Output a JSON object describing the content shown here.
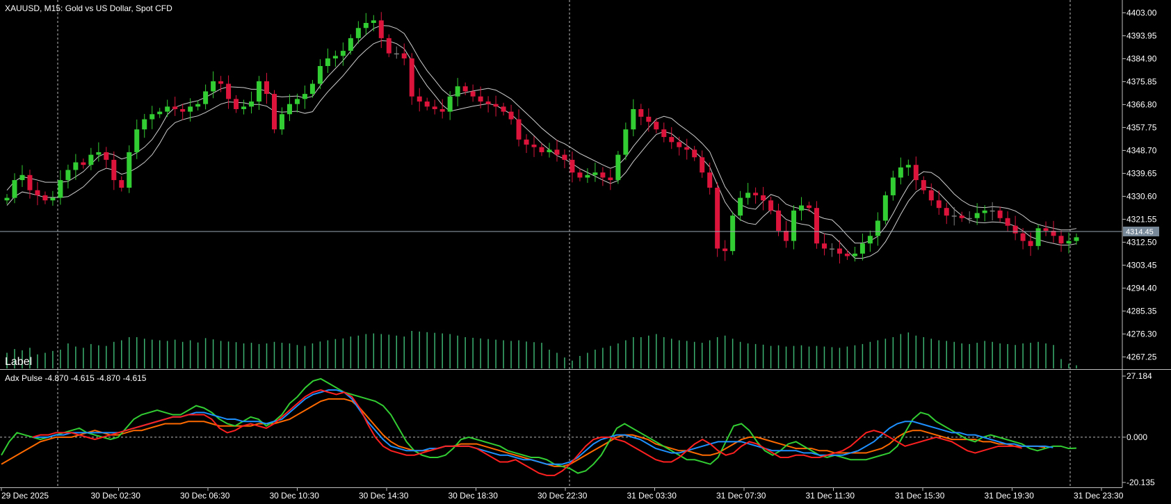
{
  "symbol_title": "XAUUSD, M15:  Gold vs US Dollar, Spot CFD",
  "label_text": "Label",
  "price_axis": {
    "ticks": [
      "4403.00",
      "4393.95",
      "4384.90",
      "4375.85",
      "4366.80",
      "4357.75",
      "4348.70",
      "4339.65",
      "4330.60",
      "4321.55",
      "4312.50",
      "4303.45",
      "4294.40",
      "4285.35",
      "4276.30",
      "4267.25"
    ],
    "current_price": "4314.45"
  },
  "indicator": {
    "title": "Adx Pulse -4.870 -4.615 -4.870 -4.615",
    "ticks": [
      "27.184",
      "0.000",
      "-20.135"
    ]
  },
  "time_axis": [
    "29 Dec 2025",
    "30 Dec 02:30",
    "30 Dec 06:30",
    "30 Dec 10:30",
    "30 Dec 14:30",
    "30 Dec 18:30",
    "30 Dec 22:30",
    "31 Dec 03:30",
    "31 Dec 07:30",
    "31 Dec 11:30",
    "31 Dec 15:30",
    "31 Dec 19:30",
    "31 Dec 23:30"
  ],
  "colors": {
    "background": "#000000",
    "bull": "#32cd32",
    "bear": "#dc143c",
    "neutral": "#808080",
    "volume": "#3cb371",
    "adx_green": "#32cd32",
    "adx_blue": "#1e90ff",
    "adx_red": "#ff2020",
    "adx_orange": "#ff6a00",
    "price_tag": "#778899"
  },
  "chart_data": {
    "type": "candlestick",
    "price_range": [
      4262.7,
      4407.5
    ],
    "indicator_range": [
      -20.135,
      27.184
    ],
    "price_path": [
      4330,
      4337,
      4339,
      4333,
      4331,
      4329,
      4330,
      4337,
      4341,
      4344,
      4343,
      4347,
      4348,
      4345,
      4337,
      4334,
      4348,
      4357,
      4361,
      4363,
      4364,
      4366,
      4365,
      4364,
      4366,
      4367,
      4372,
      4376,
      4375,
      4369,
      4365,
      4366,
      4368,
      4376,
      4371,
      4357,
      4363,
      4367,
      4369,
      4371,
      4375,
      4382,
      4385,
      4386,
      4388,
      4393,
      4397,
      4399,
      4400,
      4393,
      4387,
      4387,
      4385,
      4370,
      4368,
      4366,
      4365,
      4364,
      4370,
      4374,
      4372,
      4370,
      4368,
      4367,
      4366,
      4364,
      4361,
      4353,
      4351,
      4350,
      4348,
      4349,
      4347,
      4345,
      4340,
      4338,
      4339,
      4340,
      4338,
      4337,
      4347,
      4357,
      4365,
      4362,
      4360,
      4357,
      4354,
      4352,
      4350,
      4349,
      4346,
      4340,
      4334,
      4310,
      4309,
      4323,
      4330,
      4332,
      4331,
      4329,
      4325,
      4317,
      4313,
      4325,
      4327,
      4326,
      4312,
      4310,
      4310,
      4308,
      4307,
      4308,
      4312,
      4315,
      4321,
      4331,
      4338,
      4342,
      4343,
      4337,
      4333,
      4329,
      4326,
      4323,
      4323,
      4322,
      4322,
      4324,
      4325,
      4325,
      4322,
      4319,
      4316,
      4313,
      4311,
      4318,
      4317,
      4315,
      4312,
      4313,
      4314.45
    ],
    "volumes": [
      0.5,
      0.62,
      0.58,
      0.66,
      0.45,
      0.5,
      0.56,
      0.6,
      0.8,
      0.7,
      0.66,
      0.78,
      0.74,
      0.72,
      0.85,
      0.9,
      1.0,
      1.0,
      0.95,
      0.92,
      0.9,
      0.88,
      0.92,
      0.85,
      0.9,
      0.83,
      0.97,
      0.93,
      0.88,
      0.86,
      0.84,
      0.8,
      0.82,
      0.78,
      0.8,
      0.85,
      0.82,
      0.8,
      0.75,
      0.72,
      0.8,
      0.86,
      0.9,
      0.94,
      0.96,
      1.02,
      1.05,
      1.1,
      1.12,
      1.1,
      1.08,
      1.05,
      1.02,
      1.2,
      1.18,
      1.16,
      1.14,
      1.12,
      1.1,
      1.05,
      1.0,
      0.98,
      0.96,
      0.94,
      0.92,
      0.9,
      0.88,
      0.9,
      0.86,
      0.84,
      0.82,
      0.6,
      0.5,
      0.35,
      0.25,
      0.4,
      0.5,
      0.6,
      0.66,
      0.72,
      0.8,
      0.9,
      1.0,
      1.0,
      1.05,
      1.1,
      1.0,
      0.95,
      0.9,
      0.88,
      0.85,
      0.82,
      0.9,
      1.0,
      1.05,
      0.95,
      0.85,
      0.8,
      0.78,
      0.76,
      0.72,
      0.74,
      0.7,
      0.72,
      0.74,
      0.7,
      0.72,
      0.7,
      0.68,
      0.66,
      0.7,
      0.74,
      0.78,
      0.85,
      0.9,
      0.95,
      1.0,
      1.1,
      1.15,
      1.05,
      1.0,
      0.95,
      0.9,
      0.88,
      0.85,
      0.8,
      0.78,
      0.82,
      0.88,
      0.85,
      0.8,
      0.78,
      0.75,
      0.8,
      0.82,
      0.85,
      0.8,
      0.75,
      0.3,
      0.15,
      0.1
    ],
    "adx_green": [
      -8,
      -2,
      2,
      1,
      0,
      -1,
      0,
      1,
      2,
      3,
      4,
      2,
      1,
      0,
      -1,
      0,
      4,
      8,
      10,
      11,
      12,
      11,
      10,
      10,
      12,
      14,
      13,
      11,
      8,
      6,
      5,
      7,
      9,
      8,
      5,
      7,
      10,
      15,
      18,
      22,
      25,
      26,
      24,
      22,
      20,
      19,
      18,
      17,
      16,
      14,
      10,
      4,
      -2,
      -6,
      -8,
      -9,
      -9,
      -8,
      -5,
      -1,
      0,
      -1,
      -2,
      -3,
      -4,
      -6,
      -7,
      -8,
      -9,
      -9,
      -10,
      -12,
      -13,
      -14,
      -16,
      -15,
      -12,
      -8,
      -2,
      4,
      6,
      4,
      2,
      0,
      -2,
      -4,
      -6,
      -8,
      -10,
      -10,
      -11,
      -12,
      -9,
      -2,
      5,
      6,
      3,
      -2,
      -6,
      -8,
      -6,
      -3,
      -2,
      -4,
      -6,
      -8,
      -9,
      -8,
      -9,
      -10,
      -10,
      -10,
      -9,
      -8,
      -7,
      -4,
      2,
      8,
      11,
      10,
      7,
      5,
      3,
      1,
      -1,
      -2,
      0,
      1,
      0,
      -1,
      -2,
      -3,
      -5,
      -6,
      -5,
      -4,
      -4,
      -5,
      -4.87
    ],
    "adx_blue": [
      null,
      null,
      null,
      null,
      0,
      0,
      0,
      1,
      1,
      2,
      2,
      2,
      2,
      2,
      2,
      2,
      3,
      4,
      5,
      6,
      7,
      8,
      9,
      9,
      10,
      11,
      11,
      10,
      9,
      8,
      8,
      7,
      7,
      7,
      6,
      7,
      8,
      11,
      14,
      17,
      19,
      20,
      21,
      21,
      20,
      17,
      12,
      7,
      3,
      -1,
      -4,
      -5,
      -6,
      -6,
      -6,
      -5,
      -5,
      -4,
      -4,
      -4,
      -4,
      -5,
      -6,
      -7,
      -8,
      -8,
      -9,
      -10,
      -10,
      -11,
      -12,
      -12,
      -12,
      -11,
      -9,
      -6,
      -3,
      -1,
      0,
      1,
      1,
      0,
      -1,
      -3,
      -5,
      -6,
      -7,
      -7,
      -6,
      -5,
      -4,
      -3,
      -2,
      -2,
      -2,
      -2,
      -3,
      -4,
      -5,
      -6,
      -6,
      -6,
      -6,
      -7,
      -7,
      -8,
      -8,
      -8,
      -8,
      -7,
      -6,
      -4,
      -2,
      1,
      4,
      6,
      7,
      7,
      6,
      5,
      4,
      3,
      2,
      2,
      1,
      1,
      0,
      -1,
      -2,
      -3,
      -3,
      -4,
      -4,
      -4,
      -4,
      -4.615
    ],
    "adx_red": [
      null,
      null,
      null,
      null,
      0,
      1,
      1,
      2,
      2,
      2,
      1,
      0,
      -1,
      0,
      1,
      2,
      3,
      4,
      5,
      6,
      7,
      8,
      9,
      9,
      10,
      10,
      10,
      8,
      4,
      2,
      3,
      5,
      6,
      5,
      4,
      6,
      9,
      12,
      15,
      18,
      20,
      21,
      20,
      19,
      20,
      18,
      13,
      6,
      0,
      -4,
      -6,
      -7,
      -8,
      -8,
      -7,
      -6,
      -5,
      -4,
      -4,
      -4,
      -4,
      -5,
      -7,
      -9,
      -11,
      -11,
      -10,
      -12,
      -14,
      -16,
      -17,
      -17,
      -15,
      -12,
      -8,
      -4,
      -1,
      0,
      0,
      -1,
      -2,
      -4,
      -6,
      -8,
      -10,
      -11,
      -11,
      -9,
      -6,
      -3,
      -1,
      -3,
      -6,
      -8,
      -7,
      -4,
      -2,
      -3,
      -5,
      -7,
      -9,
      -9,
      -8,
      -8,
      -9,
      -9,
      -8,
      -7,
      -6,
      -4,
      -1,
      2,
      3,
      2,
      0,
      -2,
      -4,
      -3,
      -2,
      -1,
      0,
      -1,
      -2,
      -4,
      -6,
      -7,
      -6,
      -5,
      -4,
      -4,
      -4,
      -4.87
    ],
    "adx_orange": [
      -12,
      -10,
      -8,
      -6,
      -4,
      -2,
      -1,
      0,
      0,
      0,
      1,
      2,
      3,
      2,
      1,
      1,
      2,
      3,
      3,
      4,
      5,
      6,
      6,
      6,
      7,
      7,
      7,
      6,
      5,
      5,
      5,
      5,
      5,
      6,
      6,
      6,
      7,
      8,
      10,
      12,
      14,
      16,
      17,
      17,
      17,
      16,
      13,
      9,
      5,
      1,
      -2,
      -4,
      -5,
      -6,
      -6,
      -6,
      -5,
      -4,
      -4,
      -3,
      -3,
      -3,
      -4,
      -5,
      -6,
      -7,
      -8,
      -9,
      -10,
      -11,
      -12,
      -13,
      -13,
      -12,
      -10,
      -8,
      -6,
      -4,
      -2,
      0,
      1,
      1,
      0,
      -1,
      -3,
      -4,
      -5,
      -6,
      -6,
      -7,
      -8,
      -8,
      -7,
      -5,
      -3,
      -1,
      0,
      0,
      -1,
      -2,
      -3,
      -4,
      -5,
      -5,
      -5,
      -6,
      -6,
      -7,
      -7,
      -7,
      -7,
      -7,
      -6,
      -5,
      -3,
      0,
      2,
      3,
      3,
      2,
      1,
      0,
      -1,
      -1,
      -1,
      -1,
      -2,
      -2,
      -3,
      -3,
      -4,
      -4,
      -4,
      -4,
      -4.615
    ]
  }
}
